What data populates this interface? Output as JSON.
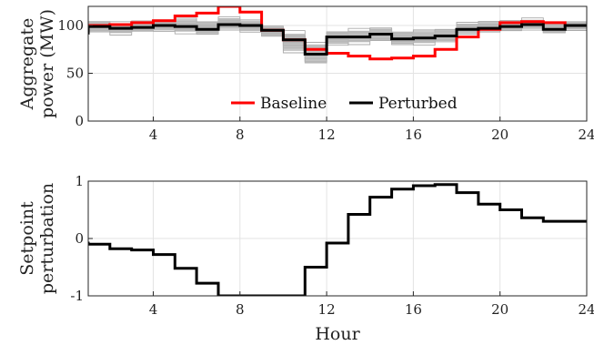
{
  "chart_data": [
    {
      "type": "line",
      "step": true,
      "ylabel": [
        "Aggregate",
        "power (MW)"
      ],
      "xlim": [
        1,
        24
      ],
      "ylim": [
        0,
        120
      ],
      "xticks": [
        4,
        8,
        12,
        16,
        20,
        24
      ],
      "yticks": [
        0,
        50,
        100
      ],
      "grid": true,
      "legend_position": "bottom-center",
      "x": [
        1,
        2,
        3,
        4,
        5,
        6,
        7,
        8,
        9,
        10,
        11,
        12,
        13,
        14,
        15,
        16,
        17,
        18,
        19,
        20,
        21,
        22,
        23,
        24
      ],
      "series": [
        {
          "name": "Baseline",
          "color": "#ff0000",
          "values": [
            97,
            100,
            101,
            103,
            105,
            110,
            113,
            120,
            114,
            95,
            85,
            75,
            71,
            68,
            65,
            66,
            68,
            75,
            88,
            96,
            103,
            104,
            103,
            100
          ]
        },
        {
          "name": "Perturbed",
          "color": "#000000",
          "values": [
            92,
            99,
            97,
            98,
            100,
            99,
            96,
            101,
            100,
            95,
            85,
            70,
            88,
            88,
            91,
            86,
            87,
            89,
            96,
            97,
            99,
            101,
            96,
            100
          ]
        }
      ],
      "envelope": {
        "color": "#aaaaaa",
        "low": [
          85,
          92,
          90,
          92,
          93,
          91,
          89,
          94,
          92,
          87,
          71,
          57,
          78,
          80,
          82,
          79,
          79,
          81,
          90,
          92,
          93,
          95,
          90,
          94
        ],
        "high": [
          102,
          106,
          104,
          106,
          108,
          108,
          106,
          110,
          107,
          101,
          95,
          84,
          96,
          97,
          99,
          95,
          96,
          98,
          104,
          105,
          107,
          108,
          104,
          106
        ]
      }
    },
    {
      "type": "line",
      "step": true,
      "xlabel": "Hour",
      "ylabel": [
        "Setpoint",
        "perturbation"
      ],
      "xlim": [
        1,
        24
      ],
      "ylim": [
        -1,
        1
      ],
      "xticks": [
        4,
        8,
        12,
        16,
        20,
        24
      ],
      "yticks": [
        -1,
        0,
        1
      ],
      "grid": true,
      "x": [
        1,
        2,
        3,
        4,
        5,
        6,
        7,
        8,
        9,
        10,
        11,
        12,
        13,
        14,
        15,
        16,
        17,
        18,
        19,
        20,
        21,
        22,
        23,
        24
      ],
      "series": [
        {
          "color": "#000000",
          "values": [
            -0.08,
            -0.1,
            -0.18,
            -0.2,
            -0.28,
            -0.52,
            -0.78,
            -1.0,
            -1.0,
            -1.0,
            -1.0,
            -0.5,
            -0.08,
            0.42,
            0.72,
            0.86,
            0.92,
            0.94,
            0.8,
            0.6,
            0.5,
            0.36,
            0.3,
            0.3
          ]
        }
      ]
    }
  ]
}
